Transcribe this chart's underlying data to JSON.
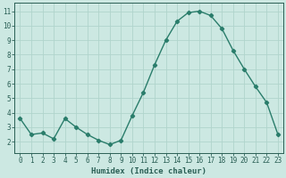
{
  "x": [
    0,
    1,
    2,
    3,
    4,
    5,
    6,
    7,
    8,
    9,
    10,
    11,
    12,
    13,
    14,
    15,
    16,
    17,
    18,
    19,
    20,
    21,
    22,
    23
  ],
  "y": [
    3.6,
    2.5,
    2.6,
    2.2,
    3.6,
    3.0,
    2.5,
    2.1,
    1.8,
    2.1,
    3.8,
    5.4,
    7.3,
    9.0,
    10.3,
    10.9,
    11.0,
    10.7,
    9.8,
    8.3,
    7.0,
    5.8,
    4.7,
    2.5
  ],
  "line_color": "#2a7d6b",
  "marker": "D",
  "marker_size": 2.2,
  "bg_color": "#cce8e2",
  "grid_color": "#b0d4cc",
  "xlabel": "Humidex (Indice chaleur)",
  "xlim": [
    -0.5,
    23.5
  ],
  "ylim": [
    1.2,
    11.6
  ],
  "yticks": [
    2,
    3,
    4,
    5,
    6,
    7,
    8,
    9,
    10,
    11
  ],
  "xticks": [
    0,
    1,
    2,
    3,
    4,
    5,
    6,
    7,
    8,
    9,
    10,
    11,
    12,
    13,
    14,
    15,
    16,
    17,
    18,
    19,
    20,
    21,
    22,
    23
  ],
  "tick_color": "#2a5f55",
  "axis_color": "#2a5f55",
  "label_fontsize": 6.5,
  "tick_fontsize": 5.5,
  "linewidth": 1.0
}
